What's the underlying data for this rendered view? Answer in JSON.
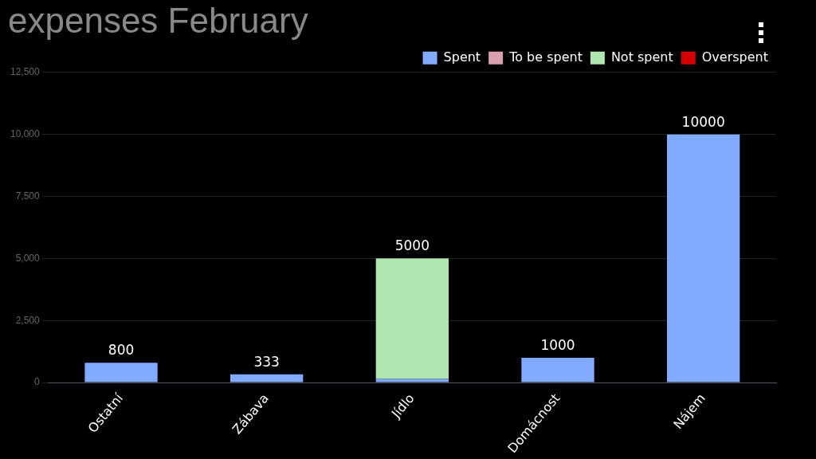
{
  "chart_data": {
    "type": "bar",
    "title": "expenses February",
    "stacked": true,
    "categories": [
      "Ostatní",
      "Zábava",
      "Jídlo",
      "Domácnost",
      "Nájem"
    ],
    "series": [
      {
        "name": "Spent",
        "color": "#82aaff",
        "values": [
          800,
          333,
          150,
          1000,
          10000
        ]
      },
      {
        "name": "To be spent",
        "color": "#d9a0b0",
        "values": [
          null,
          null,
          null,
          null,
          null
        ]
      },
      {
        "name": "Not spent",
        "color": "#b0e6b0",
        "values": [
          null,
          null,
          4850,
          null,
          null
        ]
      },
      {
        "name": "Overspent",
        "color": "#d40000",
        "values": [
          null,
          null,
          null,
          null,
          null
        ]
      }
    ],
    "totals": [
      "800",
      "333",
      "5000",
      "1000",
      "10000"
    ],
    "ylim": [
      0,
      12500
    ],
    "yticks": [
      0,
      {
        "value": 2500,
        "label": "2,500"
      },
      {
        "value": 5000,
        "label": "5,000"
      },
      {
        "value": 7500,
        "label": "7,500"
      },
      {
        "value": 10000,
        "label": "10,000"
      },
      {
        "value": 12500,
        "label": "12,500"
      }
    ],
    "grid": "y",
    "legend": "top right"
  }
}
